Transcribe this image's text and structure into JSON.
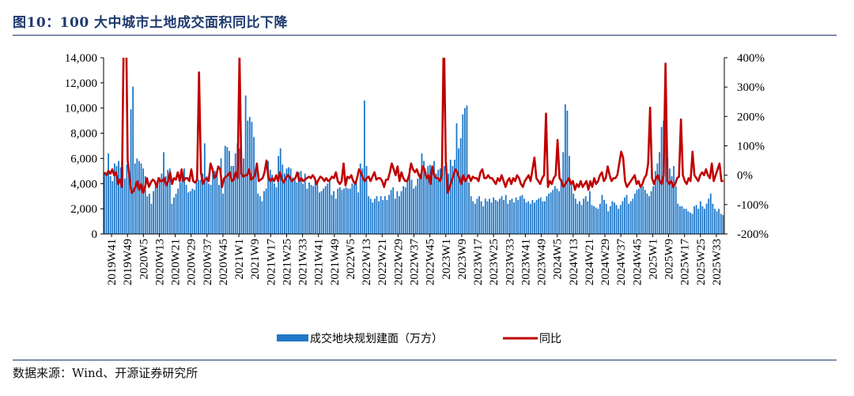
{
  "title": "图10：100 大中城市土地成交面积同比下降",
  "source": "数据来源：Wind、开源证券研究所",
  "chart_data": {
    "type": "bar+line",
    "x_labels": [
      "2019W41",
      "2019W49",
      "2020W5",
      "2020W13",
      "2020W21",
      "2020W29",
      "2020W37",
      "2020W45",
      "2021W1",
      "2021W9",
      "2021W17",
      "2021W25",
      "2021W33",
      "2021W41",
      "2021W49",
      "2022W5",
      "2022W13",
      "2022W21",
      "2022W29",
      "2022W37",
      "2022W45",
      "2023W1",
      "2023W9",
      "2023W17",
      "2023W25",
      "2023W33",
      "2023W41",
      "2023W49",
      "2024W5",
      "2024W13",
      "2024W21",
      "2024W29",
      "2024W37",
      "2024W45",
      "2025W1",
      "2025W9",
      "2025W17",
      "2025W25",
      "2025W33"
    ],
    "y_left": {
      "ticks": [
        "0",
        "2,000",
        "4,000",
        "6,000",
        "8,000",
        "10,000",
        "12,000",
        "14,000"
      ],
      "min": 0,
      "max": 14000
    },
    "y_right": {
      "ticks": [
        "-200%",
        "-100%",
        "0%",
        "100%",
        "200%",
        "300%",
        "400%"
      ],
      "min": -200,
      "max": 400
    },
    "grid": false,
    "legend_position": "bottom-center",
    "series": [
      {
        "name": "成交地块规划建面（万方）",
        "kind": "bar",
        "axis": "left",
        "color": "#1f78c8",
        "values": [
          4800,
          4600,
          6400,
          4600,
          4200,
          5600,
          5400,
          5800,
          5300,
          5300,
          4400,
          5500,
          4800,
          9900,
          11700,
          5600,
          6000,
          5800,
          5600,
          5200,
          4600,
          3000,
          3200,
          2400,
          3400,
          3800,
          3900,
          4500,
          4800,
          6500,
          4600,
          5100,
          5200,
          2400,
          2900,
          3200,
          3600,
          4100,
          4700,
          5200,
          3900,
          3300,
          3400,
          3600,
          3500,
          4200,
          4300,
          4300,
          4800,
          7200,
          4600,
          4000,
          3900,
          4900,
          5000,
          4800,
          3900,
          6000,
          3200,
          7000,
          6900,
          6600,
          5400,
          5400,
          6400,
          7200,
          6800,
          4800,
          6000,
          11000,
          9000,
          9300,
          8900,
          7700,
          5200,
          3200,
          3000,
          2600,
          3400,
          3600,
          5800,
          5100,
          4700,
          4000,
          3700,
          6200,
          6800,
          5500,
          4800,
          5200,
          5300,
          5200,
          4500,
          4300,
          4100,
          4900,
          5000,
          4000,
          4800,
          3600,
          4100,
          3900,
          3800,
          4400,
          4100,
          3300,
          3400,
          3600,
          3800,
          4000,
          4300,
          3100,
          3400,
          2800,
          3600,
          3700,
          3500,
          3600,
          3700,
          3600,
          3600,
          4000,
          3900,
          4200,
          3300,
          5600,
          5200,
          10600,
          5400,
          3000,
          2800,
          2500,
          2800,
          3000,
          2600,
          3000,
          2700,
          3000,
          2700,
          3100,
          3500,
          3700,
          2800,
          3400,
          3000,
          3400,
          3800,
          3700,
          4200,
          5200,
          4300,
          3600,
          3800,
          4400,
          4800,
          6400,
          5800,
          4900,
          5400,
          5500,
          5300,
          5800,
          4800,
          5100,
          5200,
          5300,
          5400,
          5400,
          4800,
          5900,
          5400,
          5900,
          8800,
          6800,
          7600,
          9500,
          10000,
          10200,
          4100,
          3000,
          2600,
          2400,
          2800,
          3000,
          2600,
          2200,
          2800,
          2600,
          2800,
          2500,
          2900,
          2700,
          2600,
          2800,
          3000,
          2700,
          3100,
          2400,
          2700,
          2800,
          2500,
          2900,
          2700,
          3000,
          3100,
          2800,
          2500,
          2600,
          2400,
          2700,
          2500,
          2700,
          2800,
          2900,
          2600,
          2600,
          3000,
          3200,
          3300,
          3500,
          3800,
          3600,
          3400,
          4400,
          6500,
          10300,
          9800,
          6200,
          4200,
          3200,
          2800,
          2400,
          2600,
          2300,
          2800,
          3000,
          2600,
          3400,
          2300,
          2200,
          2100,
          2000,
          2400,
          3100,
          2700,
          2400,
          1800,
          2200,
          2600,
          2500,
          2300,
          2000,
          2300,
          2600,
          2900,
          3100,
          2400,
          2600,
          2800,
          3200,
          3500,
          3600,
          3900,
          3800,
          3500,
          3200,
          3000,
          3400,
          3800,
          5000,
          5600,
          6500,
          8500,
          9000,
          9700,
          6000,
          5200,
          4600,
          5400,
          3800,
          2400,
          2200,
          2200,
          2000,
          2000,
          1800,
          1700,
          1600,
          2200,
          2300,
          2000,
          2600,
          2200,
          2000,
          2400,
          2800,
          3200,
          2400,
          2000,
          1800,
          2000,
          1600,
          1500
        ]
      },
      {
        "name": "同比",
        "kind": "line",
        "axis": "right",
        "color": "#c00000",
        "values": [
          10,
          0,
          15,
          5,
          20,
          0,
          10,
          -30,
          -15,
          -40,
          500,
          600,
          50,
          -10,
          -60,
          -55,
          -40,
          -20,
          -50,
          -30,
          -60,
          -40,
          -10,
          -40,
          -25,
          -15,
          -20,
          -40,
          -10,
          -20,
          -20,
          -10,
          -35,
          -20,
          10,
          -30,
          -10,
          -15,
          10,
          -20,
          20,
          -20,
          -10,
          -10,
          -20,
          20,
          -20,
          -25,
          -15,
          350,
          10,
          -30,
          -15,
          -10,
          -20,
          40,
          20,
          -10,
          0,
          30,
          20,
          -40,
          -10,
          -5,
          0,
          10,
          -20,
          -15,
          10,
          -10,
          410,
          5,
          -5,
          0,
          0,
          20,
          -15,
          -10,
          0,
          40,
          -20,
          -15,
          -10,
          10,
          50,
          -10,
          -20,
          -10,
          -20,
          0,
          -20,
          10,
          -15,
          -25,
          -10,
          0,
          -5,
          -20,
          -15,
          -10,
          10,
          -20,
          -10,
          -20,
          -15,
          -10,
          -5,
          -10,
          0,
          -10,
          -30,
          -15,
          -5,
          -10,
          -20,
          -10,
          -20,
          -15,
          -5,
          -10,
          10,
          -20,
          -30,
          -20,
          40,
          -35,
          -5,
          -10,
          0,
          -20,
          -30,
          -10,
          20,
          10,
          -10,
          -20,
          -10,
          -5,
          -20,
          -5,
          10,
          -15,
          -10,
          -10,
          -20,
          -40,
          -15,
          -15,
          10,
          40,
          20,
          0,
          30,
          -20,
          10,
          -10,
          -20,
          -20,
          0,
          40,
          20,
          10,
          20,
          0,
          -10,
          30,
          20,
          -10,
          0,
          -30,
          30,
          0,
          -10,
          -10,
          -20,
          0,
          500,
          50,
          -60,
          -40,
          -20,
          0,
          20,
          10,
          -10,
          -30,
          0,
          -20,
          -10,
          0,
          -20,
          -5,
          -10,
          -10,
          -20,
          10,
          20,
          -10,
          -10,
          0,
          -10,
          -10,
          -20,
          -30,
          -10,
          -20,
          0,
          -20,
          -40,
          -20,
          -10,
          -30,
          -10,
          -20,
          0,
          -10,
          -30,
          -40,
          -20,
          -10,
          0,
          -20,
          20,
          60,
          -10,
          -20,
          -30,
          -10,
          0,
          210,
          -40,
          -20,
          -30,
          -10,
          0,
          120,
          -10,
          -20,
          -40,
          -30,
          -20,
          -10,
          -30,
          -20,
          -50,
          -30,
          -40,
          -20,
          -40,
          -30,
          -20,
          -50,
          -20,
          -40,
          -10,
          -30,
          -20,
          0,
          10,
          -20,
          -10,
          30,
          0,
          -20,
          -10,
          -10,
          0,
          40,
          80,
          60,
          -20,
          -40,
          -30,
          -20,
          -10,
          0,
          -30,
          -20,
          -40,
          -30,
          -10,
          0,
          40,
          230,
          -10,
          -30,
          -10,
          0,
          -20,
          -30,
          0,
          380,
          -20,
          -30,
          -20,
          -40,
          -30,
          -10,
          -5,
          190,
          0,
          -20,
          -30,
          -10,
          -20,
          80,
          0,
          -10,
          -20,
          0,
          10,
          0,
          20,
          0,
          -10,
          40,
          -20,
          0,
          20,
          40,
          -20,
          -20
        ]
      }
    ]
  }
}
